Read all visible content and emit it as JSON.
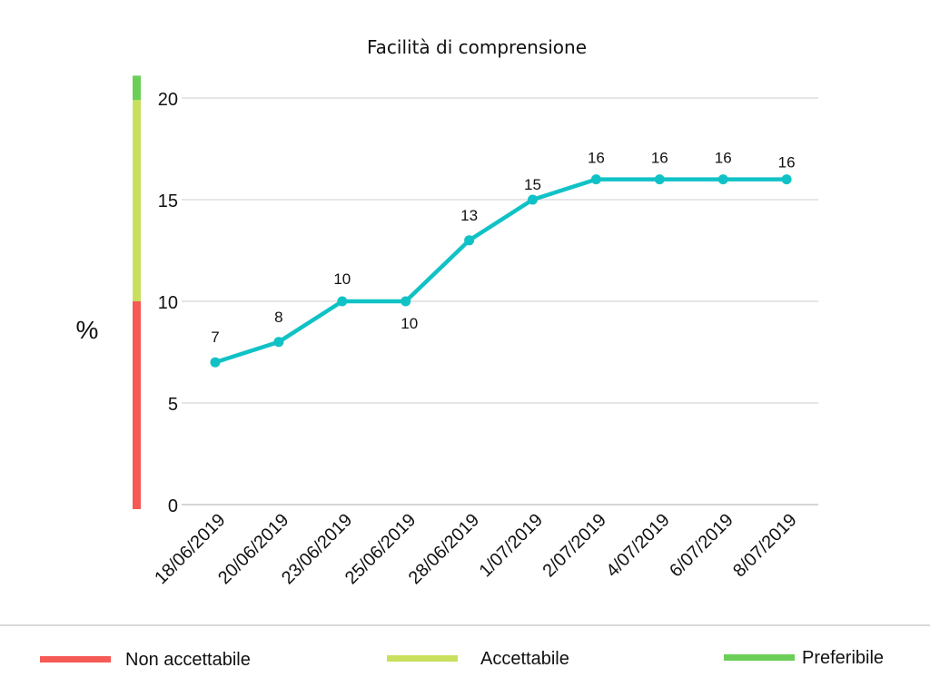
{
  "chart_data": {
    "type": "line",
    "title": "Facilità di comprensione",
    "ylabel": "%",
    "xlabel": "",
    "ylim": [
      0,
      20
    ],
    "yticks": [
      "0",
      "5",
      "10",
      "15",
      "20"
    ],
    "grid": true,
    "categories": [
      "18/06/2019",
      "20/06/2019",
      "23/06/2019",
      "25/06/2019",
      "28/06/2019",
      "1/07/2019",
      "2/07/2019",
      "4/07/2019",
      "6/07/2019",
      "8/07/2019"
    ],
    "series": [
      {
        "values": [
          7,
          8,
          10,
          10,
          13,
          15,
          16,
          16,
          16,
          16
        ],
        "color": "#10c2c6"
      }
    ],
    "data_labels": [
      "7",
      "8",
      "10",
      "10",
      "13",
      "15",
      "16",
      "16",
      "16",
      "16"
    ],
    "bands": [
      {
        "name": "Non accettabile",
        "from": 0,
        "to": 10,
        "color": "#f55a55"
      },
      {
        "name": "Accettabile",
        "from": 10,
        "to": 19.9,
        "color": "#c8e05e"
      },
      {
        "name": "Preferibile",
        "from": 19.9,
        "to": 21.1,
        "color": "#6bcf57"
      }
    ],
    "legend": {
      "position": "bottom",
      "items": [
        {
          "label": "Non accettabile",
          "color": "#f55a55"
        },
        {
          "label": "Accettabile",
          "color": "#c8e05e"
        },
        {
          "label": "Preferibile",
          "color": "#6bcf57"
        }
      ]
    }
  }
}
